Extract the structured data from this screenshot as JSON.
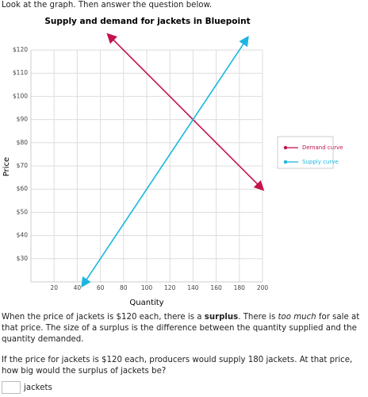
{
  "intro": "Look at the graph. Then answer the question below.",
  "chart_data": {
    "type": "line",
    "title": "Supply and demand for jackets in Bluepoint",
    "x_label": "Quantity",
    "y_label": "Price",
    "xlim": [
      0,
      200
    ],
    "ylim": [
      20,
      126
    ],
    "xticks": [
      20,
      40,
      60,
      80,
      100,
      120,
      140,
      160,
      180,
      200
    ],
    "yticks": [
      {
        "value": 30,
        "label": "$30"
      },
      {
        "value": 40,
        "label": "$40"
      },
      {
        "value": 50,
        "label": "$50"
      },
      {
        "value": 60,
        "label": "$60"
      },
      {
        "value": 70,
        "label": "$70"
      },
      {
        "value": 80,
        "label": "$80"
      },
      {
        "value": 90,
        "label": "$90"
      },
      {
        "value": 100,
        "label": "$100"
      },
      {
        "value": 110,
        "label": "$110"
      },
      {
        "value": 120,
        "label": "$120"
      }
    ],
    "grid": true,
    "series": [
      {
        "name": "Demand curve",
        "color": "#c4134a",
        "x": [
          70,
          200
        ],
        "values": [
          125,
          60
        ]
      },
      {
        "name": "Supply curve",
        "color": "#1ab6e0",
        "x": [
          47,
          187
        ],
        "values": [
          20.25,
          125.25
        ]
      }
    ]
  },
  "explanation": [
    "When the price of jackets is $120 each, there is a ",
    "surplus",
    ". There is ",
    "too much",
    " for sale at that price. The size of a surplus is the difference between the quantity supplied and the quantity demanded."
  ],
  "question": "If the price for jackets is $120 each, producers would supply 180 jackets. At that price, how big would the surplus of jackets be?",
  "answer_unit": "jackets"
}
